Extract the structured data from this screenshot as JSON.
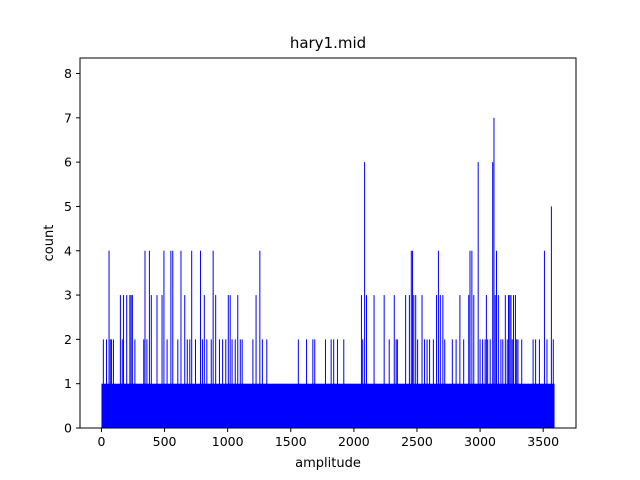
{
  "chart_data": {
    "type": "bar",
    "title": "hary1.mid",
    "xlabel": "amplitude",
    "ylabel": "count",
    "xlim": [
      -170,
      3760
    ],
    "ylim": [
      0,
      8.35
    ],
    "x_ticks": [
      "0",
      "500",
      "1000",
      "1500",
      "2000",
      "2500",
      "3000",
      "3500"
    ],
    "y_ticks": [
      "0",
      "1",
      "2",
      "3",
      "4",
      "5",
      "6",
      "7",
      "8"
    ],
    "grid": false,
    "bar_color": "#0000ff",
    "baseline_count": 1,
    "baseline_range": [
      0,
      3590
    ],
    "bins": [
      {
        "x": 15,
        "count": 2
      },
      {
        "x": 40,
        "count": 2
      },
      {
        "x": 60,
        "count": 4
      },
      {
        "x": 70,
        "count": 2
      },
      {
        "x": 80,
        "count": 2
      },
      {
        "x": 95,
        "count": 2
      },
      {
        "x": 150,
        "count": 3
      },
      {
        "x": 165,
        "count": 2
      },
      {
        "x": 175,
        "count": 3
      },
      {
        "x": 200,
        "count": 3
      },
      {
        "x": 225,
        "count": 3
      },
      {
        "x": 235,
        "count": 3
      },
      {
        "x": 245,
        "count": 3
      },
      {
        "x": 265,
        "count": 2
      },
      {
        "x": 335,
        "count": 2
      },
      {
        "x": 345,
        "count": 4
      },
      {
        "x": 360,
        "count": 2
      },
      {
        "x": 380,
        "count": 4
      },
      {
        "x": 395,
        "count": 3
      },
      {
        "x": 440,
        "count": 3
      },
      {
        "x": 480,
        "count": 3
      },
      {
        "x": 495,
        "count": 4
      },
      {
        "x": 520,
        "count": 2
      },
      {
        "x": 550,
        "count": 4
      },
      {
        "x": 565,
        "count": 4
      },
      {
        "x": 605,
        "count": 2
      },
      {
        "x": 630,
        "count": 4
      },
      {
        "x": 660,
        "count": 3
      },
      {
        "x": 680,
        "count": 2
      },
      {
        "x": 700,
        "count": 2
      },
      {
        "x": 715,
        "count": 4
      },
      {
        "x": 745,
        "count": 2
      },
      {
        "x": 785,
        "count": 4
      },
      {
        "x": 800,
        "count": 2
      },
      {
        "x": 815,
        "count": 3
      },
      {
        "x": 835,
        "count": 2
      },
      {
        "x": 870,
        "count": 2
      },
      {
        "x": 885,
        "count": 4
      },
      {
        "x": 905,
        "count": 3
      },
      {
        "x": 935,
        "count": 2
      },
      {
        "x": 960,
        "count": 2
      },
      {
        "x": 985,
        "count": 2
      },
      {
        "x": 1005,
        "count": 3
      },
      {
        "x": 1020,
        "count": 3
      },
      {
        "x": 1035,
        "count": 2
      },
      {
        "x": 1060,
        "count": 2
      },
      {
        "x": 1080,
        "count": 3
      },
      {
        "x": 1100,
        "count": 2
      },
      {
        "x": 1115,
        "count": 2
      },
      {
        "x": 1200,
        "count": 2
      },
      {
        "x": 1225,
        "count": 3
      },
      {
        "x": 1255,
        "count": 4
      },
      {
        "x": 1275,
        "count": 2
      },
      {
        "x": 1310,
        "count": 2
      },
      {
        "x": 1560,
        "count": 2
      },
      {
        "x": 1625,
        "count": 2
      },
      {
        "x": 1675,
        "count": 2
      },
      {
        "x": 1690,
        "count": 2
      },
      {
        "x": 1775,
        "count": 2
      },
      {
        "x": 1820,
        "count": 2
      },
      {
        "x": 1840,
        "count": 2
      },
      {
        "x": 1870,
        "count": 2
      },
      {
        "x": 1920,
        "count": 2
      },
      {
        "x": 2060,
        "count": 3
      },
      {
        "x": 2070,
        "count": 2
      },
      {
        "x": 2085,
        "count": 6
      },
      {
        "x": 2100,
        "count": 3
      },
      {
        "x": 2160,
        "count": 3
      },
      {
        "x": 2240,
        "count": 3
      },
      {
        "x": 2280,
        "count": 2
      },
      {
        "x": 2320,
        "count": 3
      },
      {
        "x": 2335,
        "count": 2
      },
      {
        "x": 2345,
        "count": 2
      },
      {
        "x": 2410,
        "count": 3
      },
      {
        "x": 2440,
        "count": 3
      },
      {
        "x": 2455,
        "count": 4
      },
      {
        "x": 2465,
        "count": 4
      },
      {
        "x": 2475,
        "count": 3
      },
      {
        "x": 2490,
        "count": 3
      },
      {
        "x": 2505,
        "count": 2
      },
      {
        "x": 2540,
        "count": 3
      },
      {
        "x": 2560,
        "count": 2
      },
      {
        "x": 2580,
        "count": 2
      },
      {
        "x": 2600,
        "count": 2
      },
      {
        "x": 2630,
        "count": 2
      },
      {
        "x": 2655,
        "count": 3
      },
      {
        "x": 2670,
        "count": 4
      },
      {
        "x": 2685,
        "count": 3
      },
      {
        "x": 2705,
        "count": 3
      },
      {
        "x": 2720,
        "count": 2
      },
      {
        "x": 2780,
        "count": 2
      },
      {
        "x": 2810,
        "count": 2
      },
      {
        "x": 2840,
        "count": 3
      },
      {
        "x": 2870,
        "count": 2
      },
      {
        "x": 2910,
        "count": 3
      },
      {
        "x": 2920,
        "count": 4
      },
      {
        "x": 2935,
        "count": 4
      },
      {
        "x": 2950,
        "count": 3
      },
      {
        "x": 2985,
        "count": 6
      },
      {
        "x": 3000,
        "count": 2
      },
      {
        "x": 3020,
        "count": 2
      },
      {
        "x": 3040,
        "count": 2
      },
      {
        "x": 3050,
        "count": 3
      },
      {
        "x": 3060,
        "count": 2
      },
      {
        "x": 3080,
        "count": 2
      },
      {
        "x": 3100,
        "count": 6
      },
      {
        "x": 3110,
        "count": 7
      },
      {
        "x": 3120,
        "count": 3
      },
      {
        "x": 3130,
        "count": 4
      },
      {
        "x": 3145,
        "count": 3
      },
      {
        "x": 3165,
        "count": 2
      },
      {
        "x": 3180,
        "count": 2
      },
      {
        "x": 3200,
        "count": 3
      },
      {
        "x": 3215,
        "count": 2
      },
      {
        "x": 3225,
        "count": 3
      },
      {
        "x": 3235,
        "count": 3
      },
      {
        "x": 3245,
        "count": 3
      },
      {
        "x": 3255,
        "count": 2
      },
      {
        "x": 3265,
        "count": 3
      },
      {
        "x": 3280,
        "count": 3
      },
      {
        "x": 3290,
        "count": 2
      },
      {
        "x": 3300,
        "count": 2
      },
      {
        "x": 3330,
        "count": 2
      },
      {
        "x": 3420,
        "count": 2
      },
      {
        "x": 3440,
        "count": 2
      },
      {
        "x": 3470,
        "count": 2
      },
      {
        "x": 3510,
        "count": 4
      },
      {
        "x": 3530,
        "count": 2
      },
      {
        "x": 3565,
        "count": 5
      },
      {
        "x": 3580,
        "count": 2
      }
    ]
  }
}
